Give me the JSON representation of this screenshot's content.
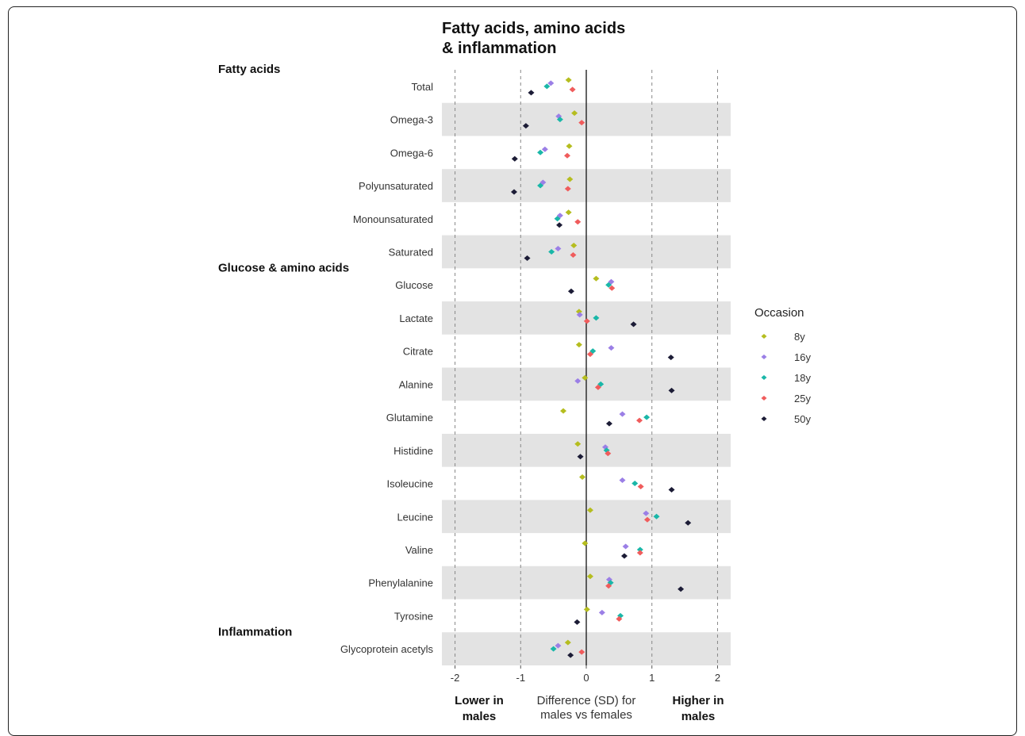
{
  "chart_data": {
    "type": "scatter",
    "title_lines": [
      "Fatty acids, amino acids",
      "& inflammation"
    ],
    "xlabel_lines": [
      "Difference (SD) for",
      "males vs females"
    ],
    "x_left_note_lines": [
      "Lower in",
      "males"
    ],
    "x_right_note_lines": [
      "Higher in",
      "males"
    ],
    "xlim": [
      -2.2,
      2.2
    ],
    "xticks": [
      -2,
      -1,
      0,
      1,
      2
    ],
    "xtick_labels": [
      "-2",
      "-1",
      "0",
      "1",
      "2"
    ],
    "dashed_lines_at": [
      -2,
      -1,
      1,
      2
    ],
    "solid_line_at": 0,
    "alternating_row_shading": true,
    "sections": [
      {
        "label": "Fatty acids",
        "first_row": 0
      },
      {
        "label": "Glucose & amino acids",
        "first_row": 6
      },
      {
        "label": "Inflammation",
        "first_row": 17
      }
    ],
    "categories": [
      "Total",
      "Omega-3",
      "Omega-6",
      "Polyunsaturated",
      "Monounsaturated",
      "Saturated",
      "Glucose",
      "Lactate",
      "Citrate",
      "Alanine",
      "Glutamine",
      "Histidine",
      "Isoleucine",
      "Leucine",
      "Valine",
      "Phenylalanine",
      "Tyrosine",
      "Glycoprotein acetyls"
    ],
    "legend_title": "Occasion",
    "series": [
      {
        "name": "8y",
        "color": "#b5bd1f",
        "values": [
          -0.27,
          -0.18,
          -0.26,
          -0.25,
          -0.27,
          -0.19,
          0.15,
          -0.11,
          -0.11,
          -0.02,
          -0.35,
          -0.13,
          -0.06,
          0.06,
          -0.02,
          0.06,
          0.01,
          -0.28
        ]
      },
      {
        "name": "16y",
        "color": "#9b7fe6",
        "values": [
          -0.54,
          -0.42,
          -0.63,
          -0.66,
          -0.4,
          -0.43,
          0.38,
          -0.1,
          0.38,
          -0.13,
          0.55,
          0.29,
          0.55,
          0.91,
          0.6,
          0.35,
          0.24,
          -0.43
        ]
      },
      {
        "name": "18y",
        "color": "#1ab7a8",
        "values": [
          -0.6,
          -0.4,
          -0.7,
          -0.7,
          -0.44,
          -0.53,
          0.34,
          0.15,
          0.1,
          0.22,
          0.92,
          0.31,
          0.74,
          1.07,
          0.82,
          0.37,
          0.52,
          -0.5
        ]
      },
      {
        "name": "25y",
        "color": "#f05c5c",
        "values": [
          -0.21,
          -0.07,
          -0.29,
          -0.28,
          -0.13,
          -0.2,
          0.39,
          0.01,
          0.06,
          0.18,
          0.81,
          0.33,
          0.83,
          0.93,
          0.82,
          0.34,
          0.5,
          -0.07
        ]
      },
      {
        "name": "50y",
        "color": "#1c1c36",
        "values": [
          -0.84,
          -0.92,
          -1.09,
          -1.1,
          -0.41,
          -0.9,
          -0.23,
          0.72,
          1.29,
          1.3,
          0.35,
          -0.09,
          1.3,
          1.55,
          0.58,
          1.44,
          -0.14,
          -0.24
        ]
      }
    ]
  }
}
